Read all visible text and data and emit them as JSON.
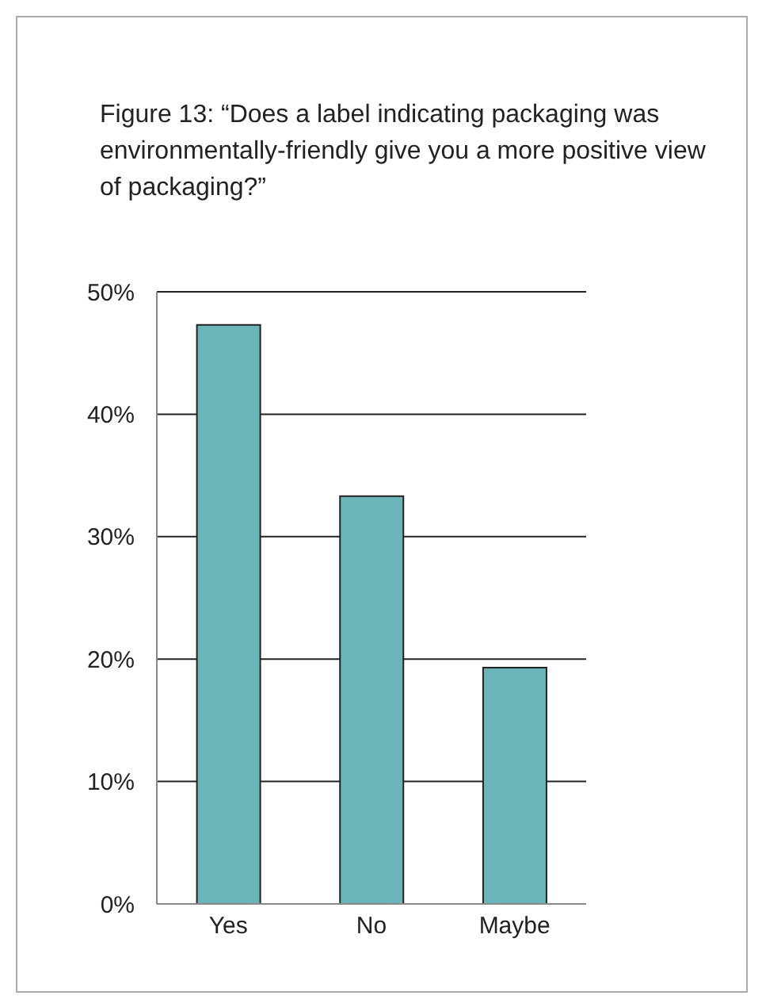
{
  "chart_data": {
    "type": "bar",
    "title": "Figure 13: “Does a label indicating packaging was environmentally-friendly give you a more positive view of packaging?”",
    "categories": [
      "Yes",
      "No",
      "Maybe"
    ],
    "values": [
      47.3,
      33.3,
      19.3
    ],
    "color": "#6bb5b8",
    "ylim": [
      0,
      50
    ],
    "yticks": [
      {
        "value": 0,
        "label": "0%"
      },
      {
        "value": 10,
        "label": "10%"
      },
      {
        "value": 20,
        "label": "20%"
      },
      {
        "value": 30,
        "label": "30%"
      },
      {
        "value": 40,
        "label": "40%"
      },
      {
        "value": 50,
        "label": "50%"
      }
    ],
    "grid": "y"
  }
}
